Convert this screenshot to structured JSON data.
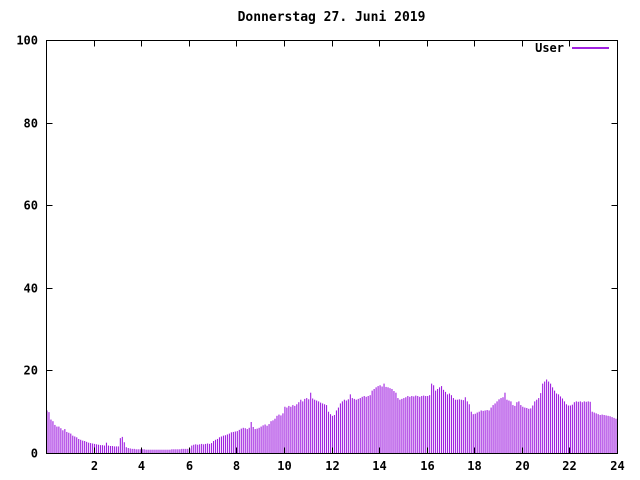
{
  "chart_data": {
    "type": "bar",
    "title": "Donnerstag 27. Juni 2019",
    "legend": [
      {
        "name": "User",
        "color": "#a020e0"
      }
    ],
    "legend_position": "top-right-inside",
    "grid": false,
    "background": "#ffffff",
    "axis_color": "#000000",
    "bar_color": "#a020e0",
    "xlim": [
      0,
      24
    ],
    "ylim": [
      0,
      100
    ],
    "x_ticks": [
      2,
      4,
      6,
      8,
      10,
      12,
      14,
      16,
      18,
      20,
      22,
      24
    ],
    "y_ticks": [
      0,
      20,
      40,
      60,
      80,
      100
    ],
    "x_unit": "hour-of-day",
    "series": [
      {
        "name": "User",
        "color": "#a020e0",
        "values": [
          10.3,
          9.9,
          8.1,
          7.7,
          6.8,
          6.4,
          6.4,
          6.0,
          5.5,
          5.8,
          5.1,
          4.9,
          4.7,
          4.2,
          4.0,
          3.8,
          3.4,
          3.2,
          3.0,
          2.9,
          2.7,
          2.5,
          2.4,
          2.3,
          2.2,
          2.1,
          2.0,
          1.9,
          1.9,
          1.8,
          2.5,
          1.8,
          1.7,
          1.7,
          1.6,
          1.6,
          1.6,
          3.6,
          3.9,
          2.6,
          1.4,
          1.2,
          1.1,
          1.0,
          1.0,
          0.9,
          0.9,
          0.9,
          0.9,
          0.9,
          0.8,
          0.8,
          0.8,
          0.8,
          0.8,
          0.8,
          0.8,
          0.8,
          0.8,
          0.8,
          0.8,
          0.8,
          0.8,
          0.9,
          0.9,
          0.9,
          0.9,
          0.9,
          1.0,
          1.0,
          1.0,
          1.0,
          1.1,
          1.8,
          2.0,
          2.1,
          2.0,
          2.1,
          2.2,
          2.1,
          2.2,
          2.3,
          2.2,
          2.4,
          2.9,
          3.2,
          3.4,
          3.8,
          4.0,
          4.2,
          4.3,
          4.5,
          4.7,
          5.0,
          5.1,
          5.2,
          5.3,
          5.6,
          5.9,
          6.1,
          6.0,
          5.8,
          6.1,
          7.5,
          6.3,
          5.8,
          5.9,
          6.1,
          6.4,
          6.7,
          6.9,
          6.6,
          7.0,
          7.7,
          7.9,
          8.3,
          9.0,
          9.3,
          9.1,
          9.6,
          11.2,
          11.0,
          11.4,
          11.2,
          11.6,
          11.4,
          11.8,
          12.3,
          12.9,
          12.5,
          13.1,
          13.3,
          13.0,
          14.6,
          13.2,
          12.9,
          12.7,
          12.5,
          12.2,
          12.0,
          11.8,
          11.6,
          10.0,
          9.4,
          9.0,
          9.2,
          10.3,
          11.0,
          12.0,
          12.5,
          12.9,
          12.7,
          13.0,
          14.2,
          13.3,
          13.1,
          12.9,
          13.1,
          13.3,
          13.6,
          13.8,
          13.6,
          13.8,
          14.0,
          15.1,
          15.5,
          15.9,
          16.2,
          16.4,
          16.1,
          16.8,
          16.0,
          15.9,
          15.7,
          15.5,
          15.0,
          14.6,
          13.3,
          12.9,
          13.1,
          13.3,
          13.5,
          13.8,
          13.6,
          13.8,
          13.7,
          13.9,
          13.8,
          13.6,
          13.8,
          13.9,
          13.8,
          13.8,
          14.0,
          16.8,
          16.4,
          15.1,
          15.5,
          15.9,
          16.2,
          15.3,
          14.8,
          14.2,
          14.4,
          14.0,
          13.3,
          12.9,
          12.9,
          13.0,
          12.9,
          12.8,
          13.5,
          12.5,
          11.8,
          10.0,
          9.4,
          9.5,
          9.8,
          10.0,
          10.3,
          10.2,
          10.3,
          10.4,
          10.3,
          11.0,
          11.6,
          12.0,
          12.5,
          13.0,
          13.3,
          13.5,
          14.6,
          12.9,
          12.7,
          12.5,
          11.6,
          11.4,
          12.3,
          12.5,
          11.6,
          11.2,
          11.0,
          10.9,
          10.7,
          10.8,
          11.5,
          12.5,
          12.9,
          13.3,
          14.5,
          16.8,
          17.3,
          17.8,
          17.3,
          16.8,
          15.9,
          15.1,
          14.4,
          14.2,
          13.7,
          13.2,
          12.5,
          11.8,
          11.5,
          11.5,
          11.7,
          12.3,
          12.5,
          12.4,
          12.5,
          12.3,
          12.5,
          12.4,
          12.5,
          12.4,
          10.0,
          9.8,
          9.6,
          9.4,
          9.2,
          9.3,
          9.2,
          9.1,
          9.0,
          8.9,
          8.7,
          8.5,
          8.3
        ]
      }
    ]
  }
}
